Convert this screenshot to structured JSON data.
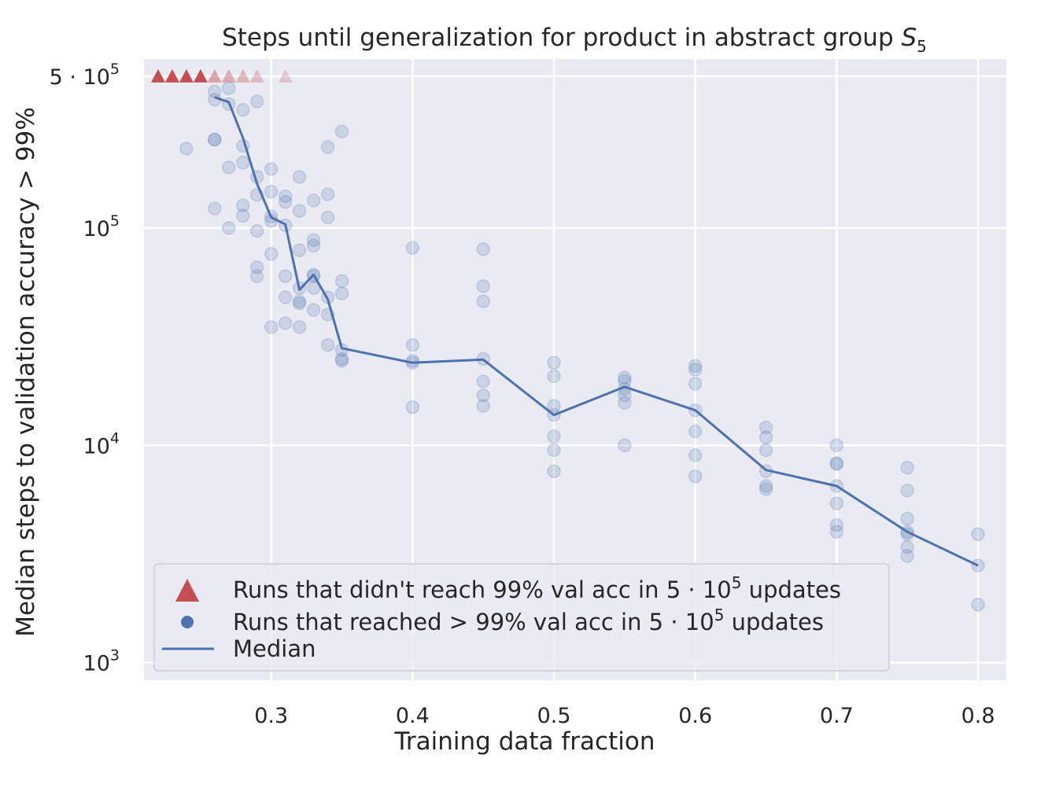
{
  "chart_data": {
    "type": "scatter",
    "title": "Steps until generalization for product in abstract group ",
    "title_math": "S",
    "title_sub": "5",
    "xlabel": "Training data fraction",
    "ylabel": "Median steps to validation accuracy > 99%",
    "x_scale": "linear",
    "y_scale": "log",
    "xlim": [
      0.21,
      0.82
    ],
    "ylim": [
      830,
      600000
    ],
    "grid": true,
    "legend_position": "lower-left",
    "x_ticks": [
      0.3,
      0.4,
      0.5,
      0.6,
      0.7,
      0.8
    ],
    "x_tick_labels": [
      "0.3",
      "0.4",
      "0.5",
      "0.6",
      "0.7",
      "0.8"
    ],
    "y_ticks": [
      {
        "value": 1000,
        "base": "10",
        "exp": "3"
      },
      {
        "value": 10000,
        "base": "10",
        "exp": "4"
      },
      {
        "value": 100000,
        "base": "10",
        "exp": "5"
      },
      {
        "value": 500000,
        "base": "5 · 10",
        "exp": "5"
      }
    ],
    "colors": {
      "failed": "#c44e52",
      "reached": "#4c72b0",
      "median": "#4c72b0",
      "background": "#eaeaf2"
    },
    "series": [
      {
        "name": "Runs that didn't reach 99% val acc in 5 · 10",
        "name_sup": "5",
        "name_suffix": " updates",
        "marker": "triangle",
        "points": [
          [
            0.22,
            500000,
            1.0
          ],
          [
            0.23,
            500000,
            1.0
          ],
          [
            0.24,
            500000,
            1.0
          ],
          [
            0.25,
            500000,
            1.0
          ],
          [
            0.26,
            500000,
            0.45
          ],
          [
            0.27,
            500000,
            0.4
          ],
          [
            0.28,
            500000,
            0.35
          ],
          [
            0.29,
            500000,
            0.3
          ],
          [
            0.31,
            500000,
            0.25
          ]
        ]
      },
      {
        "name": "Runs that reached > 99% val acc in 5 · 10",
        "name_sup": "5",
        "name_suffix": " updates",
        "marker": "circle",
        "points": [
          [
            0.24,
            232000
          ],
          [
            0.26,
            425000
          ],
          [
            0.26,
            390000
          ],
          [
            0.26,
            255000
          ],
          [
            0.26,
            256000
          ],
          [
            0.26,
            123000
          ],
          [
            0.27,
            440000
          ],
          [
            0.27,
            372000
          ],
          [
            0.27,
            190000
          ],
          [
            0.27,
            100000
          ],
          [
            0.28,
            350000
          ],
          [
            0.28,
            239000
          ],
          [
            0.28,
            200000
          ],
          [
            0.28,
            127000
          ],
          [
            0.28,
            114000
          ],
          [
            0.29,
            383000
          ],
          [
            0.29,
            172000
          ],
          [
            0.29,
            142000
          ],
          [
            0.29,
            97000
          ],
          [
            0.29,
            66000
          ],
          [
            0.29,
            60000
          ],
          [
            0.3,
            187000
          ],
          [
            0.3,
            147000
          ],
          [
            0.3,
            113000
          ],
          [
            0.3,
            108000
          ],
          [
            0.3,
            76000
          ],
          [
            0.3,
            35000
          ],
          [
            0.31,
            140000
          ],
          [
            0.31,
            132000
          ],
          [
            0.31,
            103000
          ],
          [
            0.31,
            60000
          ],
          [
            0.31,
            48000
          ],
          [
            0.31,
            36500
          ],
          [
            0.32,
            172000
          ],
          [
            0.32,
            120000
          ],
          [
            0.32,
            79000
          ],
          [
            0.32,
            53000
          ],
          [
            0.32,
            46000
          ],
          [
            0.32,
            45000
          ],
          [
            0.32,
            35000
          ],
          [
            0.33,
            134000
          ],
          [
            0.33,
            88000
          ],
          [
            0.33,
            83000
          ],
          [
            0.33,
            61000
          ],
          [
            0.33,
            60000
          ],
          [
            0.33,
            53000
          ],
          [
            0.33,
            42000
          ],
          [
            0.34,
            236000
          ],
          [
            0.34,
            143000
          ],
          [
            0.34,
            112000
          ],
          [
            0.34,
            48000
          ],
          [
            0.34,
            40000
          ],
          [
            0.34,
            29000
          ],
          [
            0.35,
            278000
          ],
          [
            0.35,
            57000
          ],
          [
            0.35,
            50000
          ],
          [
            0.35,
            27500
          ],
          [
            0.35,
            25000
          ],
          [
            0.35,
            24500
          ],
          [
            0.4,
            81000
          ],
          [
            0.4,
            29000
          ],
          [
            0.4,
            24500
          ],
          [
            0.4,
            24000
          ],
          [
            0.4,
            15000
          ],
          [
            0.45,
            80000
          ],
          [
            0.45,
            54000
          ],
          [
            0.45,
            46000
          ],
          [
            0.45,
            25000
          ],
          [
            0.45,
            19700
          ],
          [
            0.45,
            17000
          ],
          [
            0.45,
            15200
          ],
          [
            0.5,
            24000
          ],
          [
            0.5,
            20800
          ],
          [
            0.5,
            15200
          ],
          [
            0.5,
            13800
          ],
          [
            0.5,
            11000
          ],
          [
            0.5,
            9500
          ],
          [
            0.5,
            7600
          ],
          [
            0.55,
            20500
          ],
          [
            0.55,
            19800
          ],
          [
            0.55,
            18200
          ],
          [
            0.55,
            17000
          ],
          [
            0.55,
            15700
          ],
          [
            0.55,
            10000
          ],
          [
            0.6,
            23200
          ],
          [
            0.6,
            22300
          ],
          [
            0.6,
            19200
          ],
          [
            0.6,
            14500
          ],
          [
            0.6,
            11600
          ],
          [
            0.6,
            9000
          ],
          [
            0.6,
            7200
          ],
          [
            0.65,
            12100
          ],
          [
            0.65,
            10900
          ],
          [
            0.65,
            9500
          ],
          [
            0.65,
            7600
          ],
          [
            0.65,
            6500
          ],
          [
            0.65,
            6300
          ],
          [
            0.7,
            10000
          ],
          [
            0.7,
            8300
          ],
          [
            0.7,
            8200
          ],
          [
            0.7,
            6500
          ],
          [
            0.7,
            5400
          ],
          [
            0.7,
            4300
          ],
          [
            0.7,
            4000
          ],
          [
            0.75,
            7900
          ],
          [
            0.75,
            6200
          ],
          [
            0.75,
            4600
          ],
          [
            0.75,
            4000
          ],
          [
            0.75,
            3900
          ],
          [
            0.75,
            3400
          ],
          [
            0.75,
            3100
          ],
          [
            0.8,
            3900
          ],
          [
            0.8,
            2800
          ],
          [
            0.8,
            1850
          ]
        ]
      },
      {
        "name": "Median",
        "marker": "line",
        "points": [
          [
            0.26,
            400000
          ],
          [
            0.27,
            380000
          ],
          [
            0.28,
            260000
          ],
          [
            0.29,
            160000
          ],
          [
            0.3,
            112000
          ],
          [
            0.31,
            104000
          ],
          [
            0.32,
            52000
          ],
          [
            0.33,
            61000
          ],
          [
            0.34,
            47000
          ],
          [
            0.35,
            28000
          ],
          [
            0.4,
            24000
          ],
          [
            0.45,
            24800
          ],
          [
            0.5,
            13800
          ],
          [
            0.55,
            18600
          ],
          [
            0.6,
            14500
          ],
          [
            0.65,
            7700
          ],
          [
            0.7,
            6500
          ],
          [
            0.75,
            4000
          ],
          [
            0.8,
            2800
          ]
        ]
      }
    ]
  }
}
